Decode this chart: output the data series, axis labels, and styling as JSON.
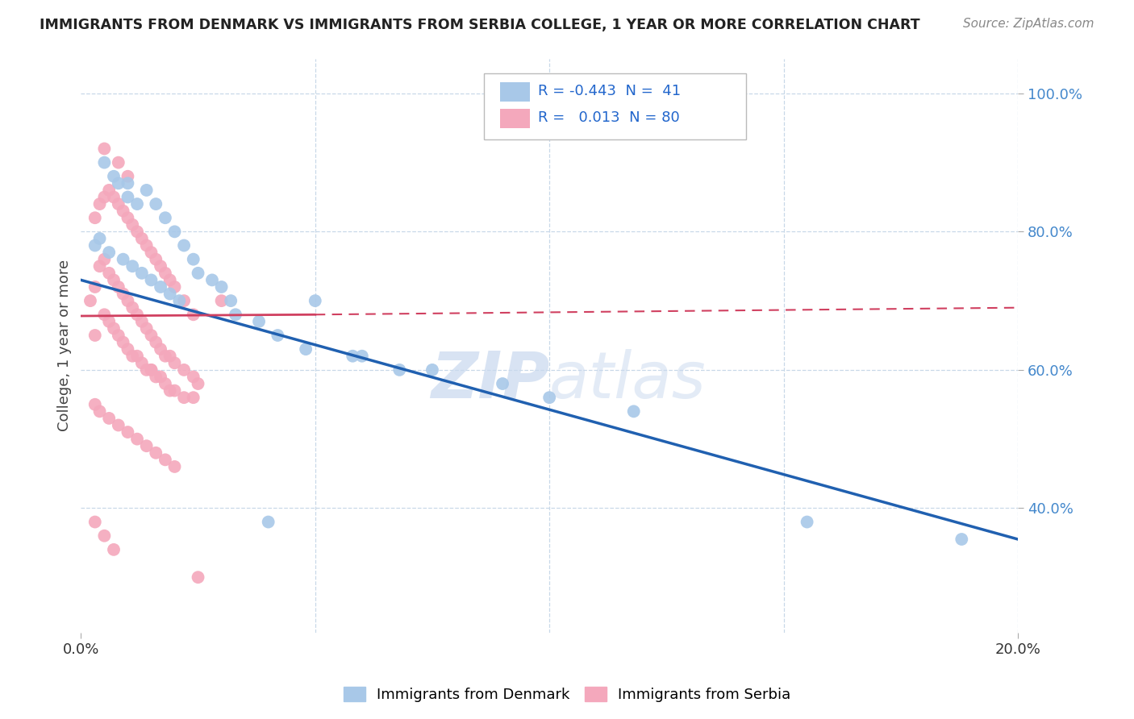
{
  "title": "IMMIGRANTS FROM DENMARK VS IMMIGRANTS FROM SERBIA COLLEGE, 1 YEAR OR MORE CORRELATION CHART",
  "source_text": "Source: ZipAtlas.com",
  "ylabel": "College, 1 year or more",
  "legend_denmark": "Immigrants from Denmark",
  "legend_serbia": "Immigrants from Serbia",
  "R_denmark": -0.443,
  "N_denmark": 41,
  "R_serbia": 0.013,
  "N_serbia": 80,
  "color_denmark": "#a8c8e8",
  "color_serbia": "#f4a8bc",
  "line_color_denmark": "#2060b0",
  "line_color_serbia": "#d04060",
  "background_color": "#ffffff",
  "grid_color": "#c8d8e8",
  "watermark_color": "#c8d8ee",
  "xlim": [
    0.0,
    0.2
  ],
  "ylim": [
    0.22,
    1.05
  ],
  "y_ticks_right": [
    0.4,
    0.6,
    0.8,
    1.0
  ],
  "y_tick_labels_right": [
    "40.0%",
    "60.0%",
    "80.0%",
    "100.0%"
  ],
  "denmark_x": [
    0.005,
    0.007,
    0.008,
    0.01,
    0.01,
    0.012,
    0.014,
    0.016,
    0.018,
    0.02,
    0.022,
    0.024,
    0.025,
    0.028,
    0.03,
    0.032,
    0.033,
    0.038,
    0.042,
    0.048,
    0.05,
    0.058,
    0.06,
    0.068,
    0.075,
    0.09,
    0.1,
    0.118,
    0.155,
    0.188,
    0.003,
    0.004,
    0.006,
    0.009,
    0.011,
    0.013,
    0.015,
    0.017,
    0.019,
    0.021,
    0.04
  ],
  "denmark_y": [
    0.9,
    0.88,
    0.87,
    0.87,
    0.85,
    0.84,
    0.86,
    0.84,
    0.82,
    0.8,
    0.78,
    0.76,
    0.74,
    0.73,
    0.72,
    0.7,
    0.68,
    0.67,
    0.65,
    0.63,
    0.7,
    0.62,
    0.62,
    0.6,
    0.6,
    0.58,
    0.56,
    0.54,
    0.38,
    0.355,
    0.78,
    0.79,
    0.77,
    0.76,
    0.75,
    0.74,
    0.73,
    0.72,
    0.71,
    0.7,
    0.38
  ],
  "serbia_x": [
    0.002,
    0.003,
    0.003,
    0.004,
    0.005,
    0.005,
    0.006,
    0.006,
    0.007,
    0.007,
    0.008,
    0.008,
    0.009,
    0.009,
    0.01,
    0.01,
    0.011,
    0.011,
    0.012,
    0.012,
    0.013,
    0.013,
    0.014,
    0.014,
    0.015,
    0.015,
    0.016,
    0.016,
    0.017,
    0.017,
    0.018,
    0.018,
    0.019,
    0.019,
    0.02,
    0.02,
    0.022,
    0.022,
    0.024,
    0.025,
    0.003,
    0.004,
    0.005,
    0.006,
    0.007,
    0.008,
    0.009,
    0.01,
    0.011,
    0.012,
    0.013,
    0.014,
    0.015,
    0.016,
    0.017,
    0.018,
    0.019,
    0.02,
    0.022,
    0.024,
    0.003,
    0.004,
    0.006,
    0.008,
    0.01,
    0.012,
    0.014,
    0.016,
    0.018,
    0.02,
    0.005,
    0.008,
    0.01,
    0.015,
    0.024,
    0.003,
    0.005,
    0.007,
    0.025,
    0.03
  ],
  "serbia_y": [
    0.7,
    0.72,
    0.65,
    0.75,
    0.76,
    0.68,
    0.74,
    0.67,
    0.73,
    0.66,
    0.72,
    0.65,
    0.71,
    0.64,
    0.7,
    0.63,
    0.69,
    0.62,
    0.68,
    0.62,
    0.67,
    0.61,
    0.66,
    0.6,
    0.65,
    0.6,
    0.64,
    0.59,
    0.63,
    0.59,
    0.62,
    0.58,
    0.62,
    0.57,
    0.61,
    0.57,
    0.6,
    0.56,
    0.59,
    0.58,
    0.82,
    0.84,
    0.85,
    0.86,
    0.85,
    0.84,
    0.83,
    0.82,
    0.81,
    0.8,
    0.79,
    0.78,
    0.77,
    0.76,
    0.75,
    0.74,
    0.73,
    0.72,
    0.7,
    0.68,
    0.55,
    0.54,
    0.53,
    0.52,
    0.51,
    0.5,
    0.49,
    0.48,
    0.47,
    0.46,
    0.92,
    0.9,
    0.88,
    0.6,
    0.56,
    0.38,
    0.36,
    0.34,
    0.3,
    0.7
  ]
}
